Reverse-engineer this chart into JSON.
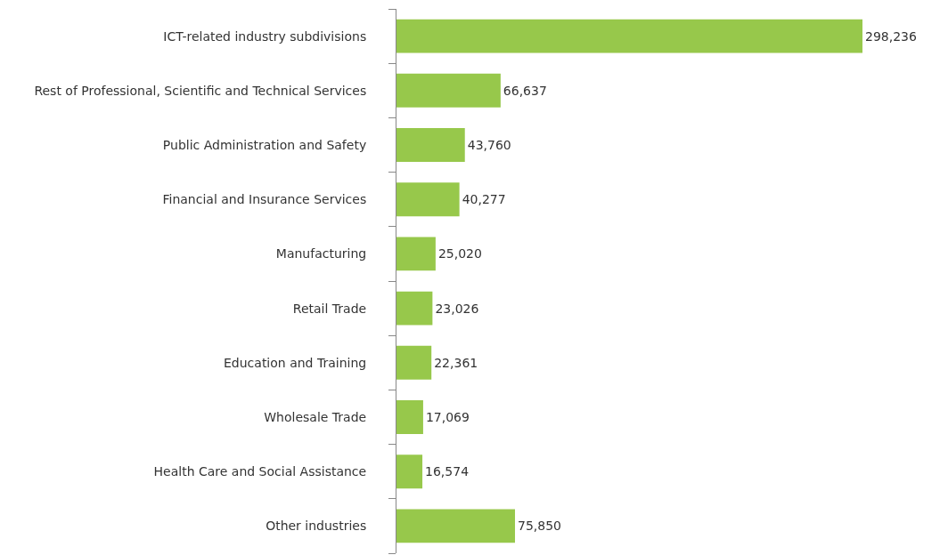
{
  "chart_data": {
    "type": "bar",
    "orientation": "horizontal",
    "categories": [
      "ICT-related industry subdivisions",
      "Rest of Professional, Scientific and Technical Services",
      "Public Administration and Safety",
      "Financial and Insurance Services",
      "Manufacturing",
      "Retail Trade",
      "Education and Training",
      "Wholesale Trade",
      "Health Care and Social Assistance",
      "Other industries"
    ],
    "values": [
      298236,
      66637,
      43760,
      40277,
      25020,
      23026,
      22361,
      17069,
      16574,
      75850
    ],
    "value_labels": [
      "298,236",
      "66,637",
      "43,760",
      "40,277",
      "25,020",
      "23,026",
      "22,361",
      "17,069",
      "16,574",
      "75,850"
    ],
    "color": "#97c84b"
  }
}
